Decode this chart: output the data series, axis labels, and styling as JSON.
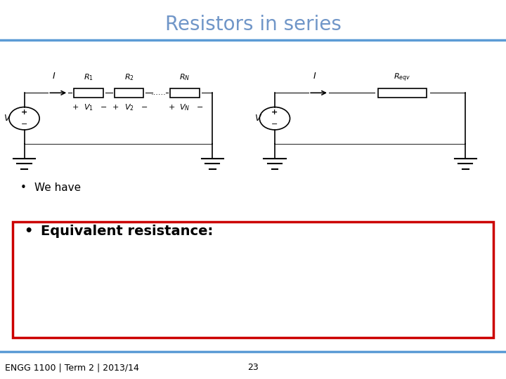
{
  "title": "Resistors in series",
  "title_color": "#7096C8",
  "title_fontsize": 20,
  "bg_color": "#FFFFFF",
  "top_line_color": "#5B9BD5",
  "bottom_line_color": "#5B9BD5",
  "bullet1_text": "We have",
  "bullet2_text": "Equivalent resistance:",
  "bullet2_bold": true,
  "footer_left": "ENGG 1100 | Term 2 | 2013/14",
  "footer_center": "23",
  "footer_fontsize": 9,
  "red_box_color": "#CC0000"
}
